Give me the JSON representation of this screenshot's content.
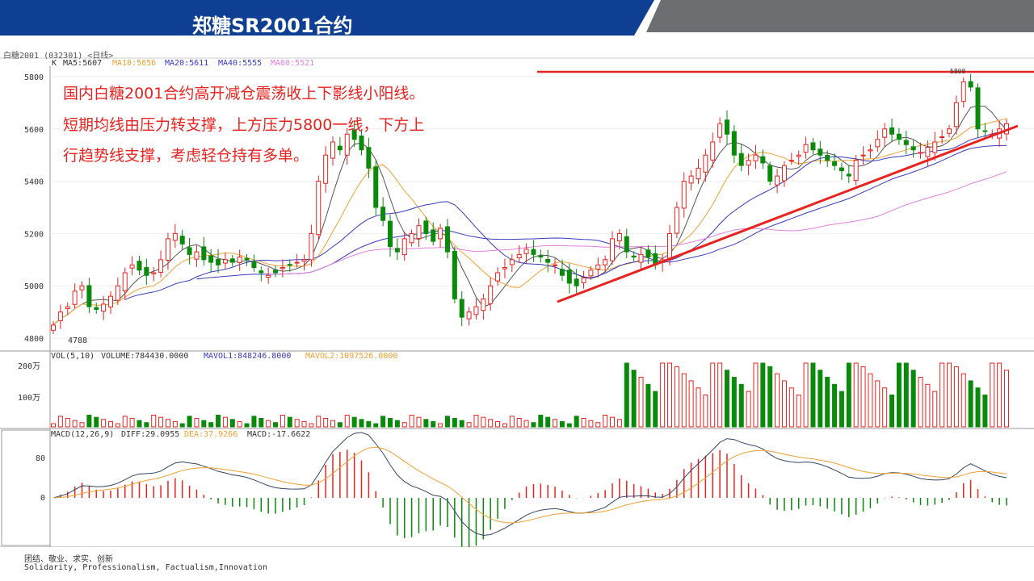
{
  "header": {
    "title": "郑糖SR2001合约"
  },
  "chart": {
    "instrument": "白糖2001 (032301) <日线>",
    "k_label": "K",
    "ma5": "MA5:5607",
    "ma10": "MA10:5656",
    "ma20": "MA20:5611",
    "ma40": "MA40:5555",
    "ma60": "MA60:5521",
    "low_label": "4788",
    "high_label": "5808",
    "vol": "VOL(5,10)",
    "volume": "VOLUME:784430.0000",
    "mavol1": "MAVOL1:848246.8000",
    "mavol2": "MAVOL2:1097526.0000",
    "macd_title": "MACD(12,26,9)",
    "diff": "DIFF:29.0955",
    "dea": "DEA:37.9266",
    "macd_val": "MACD:-17.6622",
    "colors": {
      "up": "#e8231f",
      "down": "#0a8a0a",
      "ma5": "#555555",
      "ma10": "#f0a030",
      "ma20": "#3a3ac0",
      "ma60": "#e080e0"
    }
  },
  "chart_data": [
    {
      "type": "candlestick",
      "title": "白糖2001 (032301) <日线>",
      "y_ticks": [
        4800,
        5000,
        5200,
        5400,
        5600,
        5800
      ],
      "ylim": [
        4760,
        5840
      ],
      "closes_approx": [
        4850,
        4900,
        4920,
        4980,
        5000,
        4920,
        4910,
        4930,
        4960,
        5000,
        5050,
        5080,
        5060,
        5040,
        5050,
        5100,
        5180,
        5200,
        5160,
        5120,
        5130,
        5100,
        5090,
        5080,
        5100,
        5090,
        5110,
        5100,
        5070,
        5050,
        5040,
        5050,
        5070,
        5080,
        5090,
        5100,
        5200,
        5400,
        5500,
        5550,
        5520,
        5580,
        5560,
        5520,
        5450,
        5300,
        5250,
        5150,
        5130,
        5180,
        5200,
        5230,
        5200,
        5170,
        5220,
        5130,
        4950,
        4880,
        4900,
        4920,
        4950,
        5000,
        5050,
        5070,
        5100,
        5120,
        5140,
        5120,
        5110,
        5090,
        5080,
        5040,
        5010,
        5000,
        5030,
        5060,
        5080,
        5100,
        5180,
        5200,
        5130,
        5110,
        5120,
        5110,
        5080,
        5100,
        5200,
        5300,
        5400,
        5420,
        5450,
        5500,
        5550,
        5620,
        5580,
        5500,
        5460,
        5480,
        5500,
        5470,
        5400,
        5420,
        5460,
        5480,
        5500,
        5540,
        5520,
        5500,
        5480,
        5460,
        5440,
        5420,
        5480,
        5500,
        5520,
        5560,
        5600,
        5580,
        5560,
        5540,
        5520,
        5510,
        5530,
        5550,
        5570,
        5600,
        5700,
        5780,
        5760,
        5600,
        5590,
        5580,
        5600,
        5620
      ],
      "moving_averages": {
        "MA5": 5607,
        "MA10": 5656,
        "MA20": 5611,
        "MA40": 5555,
        "MA60": 5521
      },
      "annotations": [
        "4788",
        "5808"
      ]
    },
    {
      "type": "bar",
      "title": "VOL(5,10)",
      "y_ticks": [
        "100万",
        "200万"
      ],
      "series": [
        {
          "name": "VOLUME",
          "values": [
            784430
          ]
        },
        {
          "name": "MAVOL1",
          "values": [
            848246.8
          ]
        },
        {
          "name": "MAVOL2",
          "values": [
            1097526
          ]
        }
      ]
    },
    {
      "type": "line",
      "title": "MACD(12,26,9)",
      "y_ticks": [
        0,
        80
      ],
      "series": [
        {
          "name": "DIFF",
          "values": [
            29.0955
          ]
        },
        {
          "name": "DEA",
          "values": [
            37.9266
          ]
        },
        {
          "name": "MACD",
          "values": [
            -17.6622
          ]
        }
      ]
    }
  ],
  "annotation": {
    "line1": "国内白糖2001合约高开减仓震荡收上下影线小阳线。",
    "line2": "短期均线由压力转支撑，上方压力5800一线，下方上",
    "line3": "行趋势线支撑，考虑轻仓持有多单。"
  },
  "footer": {
    "line1": "团结、敬业、求实、创新",
    "line2": "Solidarity, Professionalism, Factualism,Innovation"
  }
}
